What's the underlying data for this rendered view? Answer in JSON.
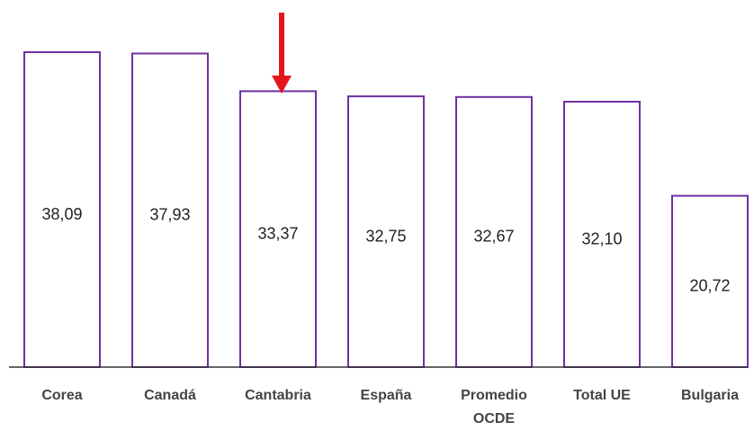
{
  "chart_data": {
    "type": "bar",
    "categories": [
      "Corea",
      "Canadá",
      "Cantabria",
      "España",
      "Promedio OCDE",
      "Total UE",
      "Bulgaria"
    ],
    "values": [
      38.09,
      37.93,
      33.37,
      32.75,
      32.67,
      32.1,
      20.72
    ],
    "value_labels": [
      "38,09",
      "37,93",
      "33,37",
      "32,75",
      "32,67",
      "32,10",
      "20,72"
    ],
    "color": "#7030a0"
  }
}
